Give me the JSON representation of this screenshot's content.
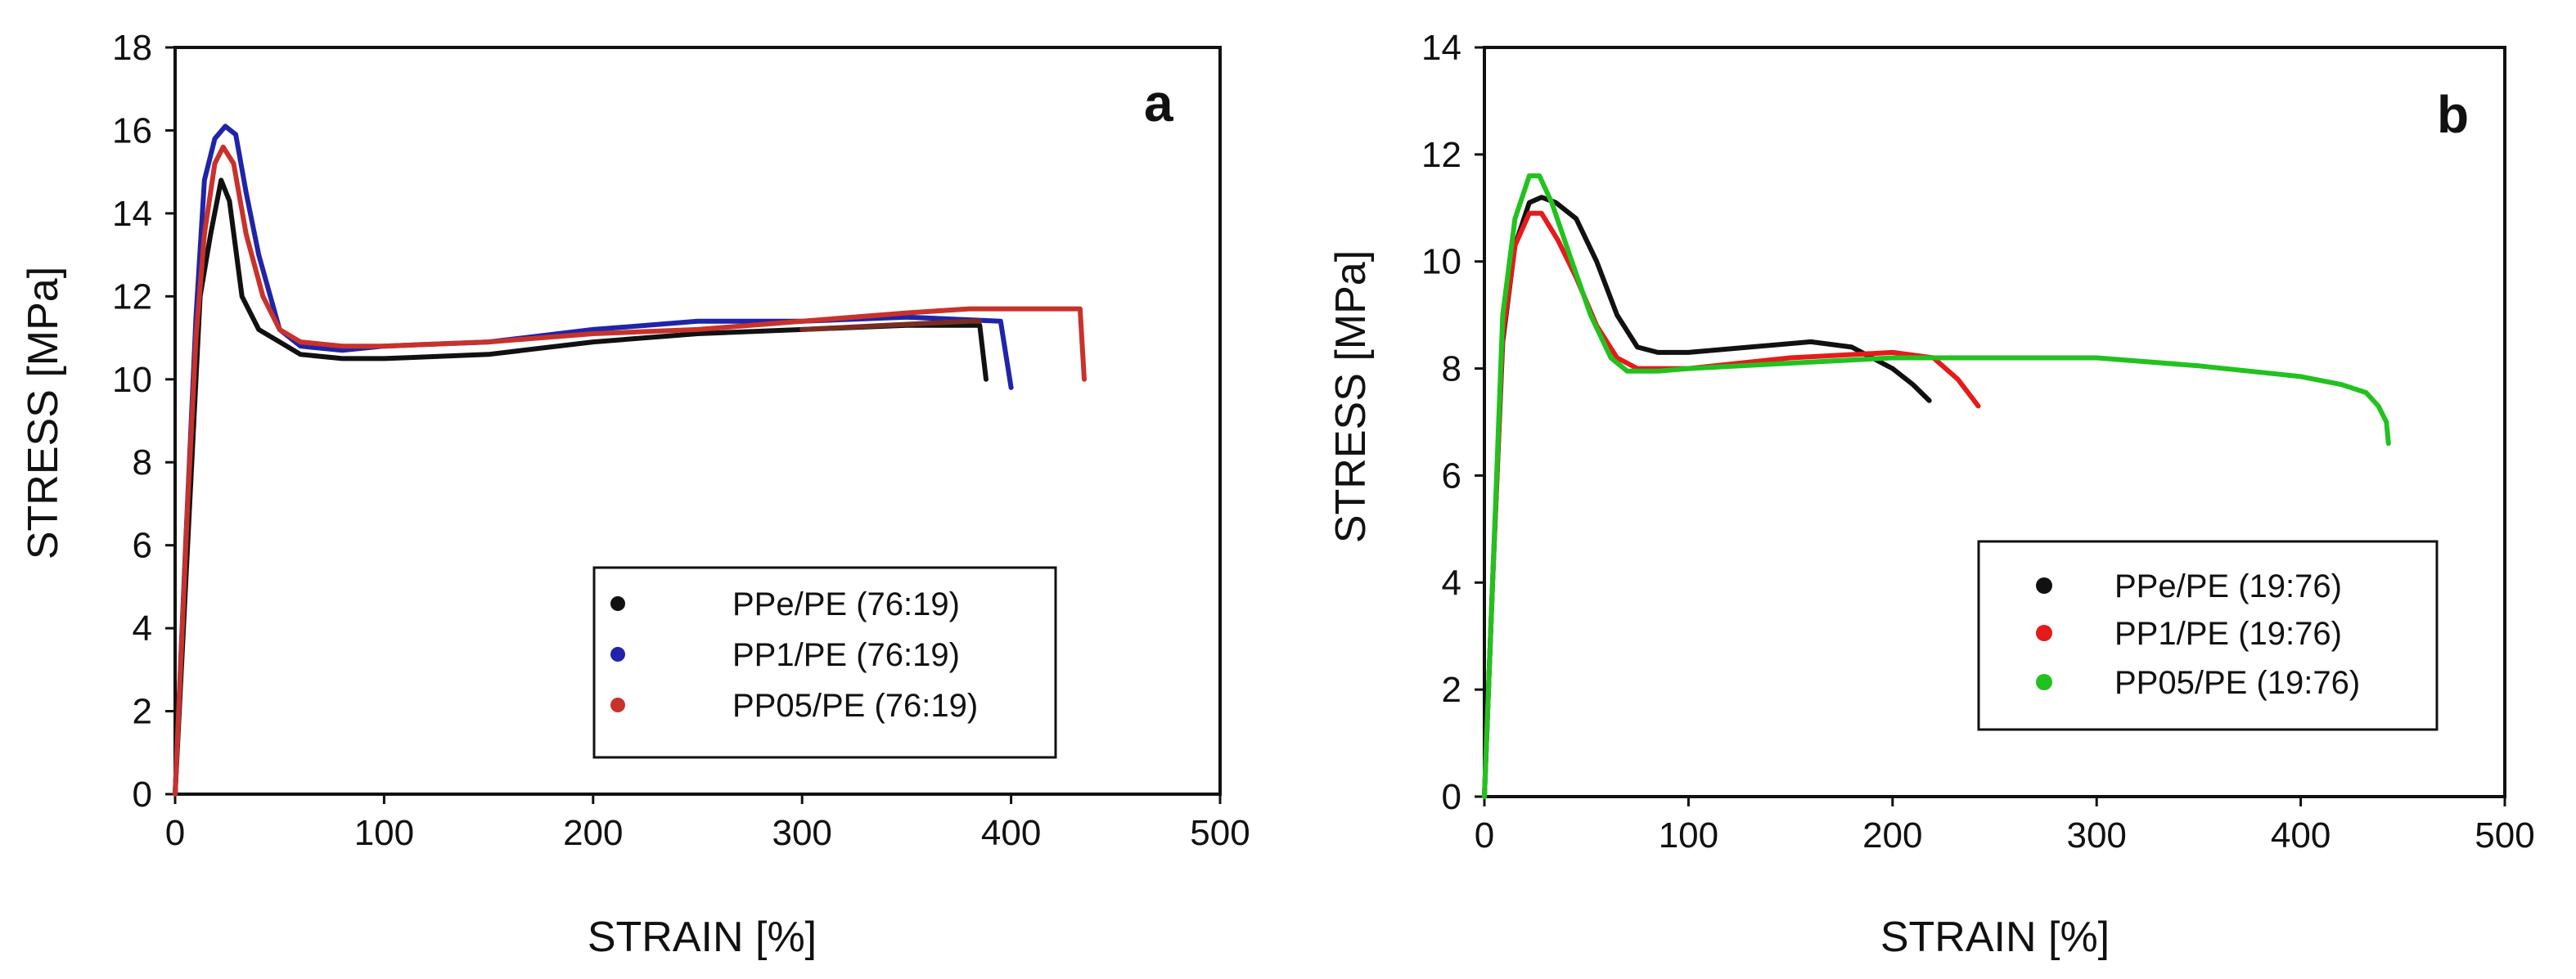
{
  "colors": {
    "black": "#111111",
    "blue": "#1f24a8",
    "red_a": "#c8322b",
    "brown": "#7a2d22",
    "red_b": "#e51b1b",
    "green": "#22c21e"
  },
  "chart_data": [
    {
      "type": "line",
      "panel_label": "a",
      "xlabel": "STRAIN [%]",
      "ylabel": "STRESS [MPa]",
      "xlim": [
        0,
        500
      ],
      "ylim": [
        0,
        18
      ],
      "xticks": [
        "0",
        "100",
        "200",
        "300",
        "400",
        "500"
      ],
      "yticks": [
        "0",
        "2",
        "4",
        "6",
        "8",
        "10",
        "12",
        "14",
        "16",
        "18"
      ],
      "grid": false,
      "legend_position": "bottom-right",
      "series": [
        {
          "name": "PPe/PE (76:19)",
          "color": "black",
          "points": [
            [
              0,
              0
            ],
            [
              8,
              8
            ],
            [
              12,
              12
            ],
            [
              17,
              13.5
            ],
            [
              22,
              14.8
            ],
            [
              26,
              14.3
            ],
            [
              32,
              12
            ],
            [
              40,
              11.2
            ],
            [
              50,
              10.9
            ],
            [
              60,
              10.6
            ],
            [
              80,
              10.5
            ],
            [
              100,
              10.5
            ],
            [
              150,
              10.6
            ],
            [
              200,
              10.9
            ],
            [
              250,
              11.1
            ],
            [
              300,
              11.2
            ],
            [
              350,
              11.3
            ],
            [
              385,
              11.3
            ],
            [
              388,
              10
            ]
          ]
        },
        {
          "name": "PP1/PE (76:19)",
          "color": "blue",
          "points": [
            [
              0,
              0
            ],
            [
              5,
              6
            ],
            [
              10,
              11.5
            ],
            [
              14,
              14.8
            ],
            [
              19,
              15.8
            ],
            [
              24,
              16.1
            ],
            [
              29,
              15.9
            ],
            [
              34,
              14.5
            ],
            [
              40,
              13
            ],
            [
              50,
              11.2
            ],
            [
              60,
              10.8
            ],
            [
              80,
              10.7
            ],
            [
              100,
              10.8
            ],
            [
              150,
              10.9
            ],
            [
              200,
              11.2
            ],
            [
              250,
              11.4
            ],
            [
              300,
              11.4
            ],
            [
              350,
              11.5
            ],
            [
              395,
              11.4
            ],
            [
              400,
              9.8
            ]
          ]
        },
        {
          "name": "PP05/PE (76:19)",
          "color": "red_a",
          "points": [
            [
              0,
              0
            ],
            [
              6,
              7
            ],
            [
              10,
              11
            ],
            [
              14,
              13.5
            ],
            [
              19,
              15.2
            ],
            [
              23,
              15.6
            ],
            [
              28,
              15.2
            ],
            [
              34,
              13.5
            ],
            [
              42,
              12
            ],
            [
              50,
              11.2
            ],
            [
              60,
              10.9
            ],
            [
              80,
              10.8
            ],
            [
              100,
              10.8
            ],
            [
              150,
              10.9
            ],
            [
              200,
              11.1
            ],
            [
              250,
              11.2
            ],
            [
              300,
              11.4
            ],
            [
              350,
              11.6
            ],
            [
              380,
              11.7
            ],
            [
              400,
              11.7
            ],
            [
              433,
              11.7
            ],
            [
              435,
              10
            ]
          ]
        },
        {
          "name": "",
          "color": "brown",
          "points": [
            [
              300,
              11.2
            ],
            [
              340,
              11.3
            ],
            [
              380,
              11.4
            ],
            [
              385,
              11.4
            ]
          ]
        }
      ]
    },
    {
      "type": "line",
      "panel_label": "b",
      "xlabel": "STRAIN [%]",
      "ylabel": "STRESS [MPa]",
      "xlim": [
        0,
        500
      ],
      "ylim": [
        0,
        14
      ],
      "xticks": [
        "0",
        "100",
        "200",
        "300",
        "400",
        "500"
      ],
      "yticks": [
        "0",
        "2",
        "4",
        "6",
        "8",
        "10",
        "12",
        "14"
      ],
      "grid": false,
      "legend_position": "bottom-right",
      "series": [
        {
          "name": "PPe/PE (19:76)",
          "color": "black",
          "points": [
            [
              0,
              0
            ],
            [
              4,
              4
            ],
            [
              9,
              8.5
            ],
            [
              15,
              10.3
            ],
            [
              22,
              11.1
            ],
            [
              28,
              11.2
            ],
            [
              35,
              11.1
            ],
            [
              45,
              10.8
            ],
            [
              55,
              10
            ],
            [
              65,
              9
            ],
            [
              75,
              8.4
            ],
            [
              85,
              8.3
            ],
            [
              100,
              8.3
            ],
            [
              130,
              8.4
            ],
            [
              160,
              8.5
            ],
            [
              180,
              8.4
            ],
            [
              200,
              8
            ],
            [
              210,
              7.7
            ],
            [
              218,
              7.4
            ]
          ]
        },
        {
          "name": "PP1/PE (19:76)",
          "color": "red_b",
          "points": [
            [
              0,
              0
            ],
            [
              4,
              4
            ],
            [
              9,
              8.6
            ],
            [
              15,
              10.3
            ],
            [
              22,
              10.9
            ],
            [
              28,
              10.9
            ],
            [
              36,
              10.4
            ],
            [
              45,
              9.7
            ],
            [
              55,
              8.8
            ],
            [
              65,
              8.2
            ],
            [
              75,
              8
            ],
            [
              100,
              8
            ],
            [
              150,
              8.2
            ],
            [
              200,
              8.3
            ],
            [
              220,
              8.2
            ],
            [
              232,
              7.8
            ],
            [
              242,
              7.3
            ]
          ]
        },
        {
          "name": "PP05/PE (19:76)",
          "color": "green",
          "points": [
            [
              0,
              0
            ],
            [
              4,
              4
            ],
            [
              9,
              9
            ],
            [
              15,
              10.8
            ],
            [
              22,
              11.6
            ],
            [
              27,
              11.6
            ],
            [
              33,
              11.1
            ],
            [
              42,
              10.1
            ],
            [
              52,
              9
            ],
            [
              62,
              8.2
            ],
            [
              70,
              7.95
            ],
            [
              85,
              7.95
            ],
            [
              100,
              8
            ],
            [
              150,
              8.1
            ],
            [
              200,
              8.2
            ],
            [
              250,
              8.2
            ],
            [
              300,
              8.2
            ],
            [
              350,
              8.05
            ],
            [
              400,
              7.85
            ],
            [
              420,
              7.7
            ],
            [
              432,
              7.55
            ],
            [
              438,
              7.3
            ],
            [
              442,
              7
            ],
            [
              443,
              6.6
            ]
          ]
        }
      ]
    }
  ]
}
